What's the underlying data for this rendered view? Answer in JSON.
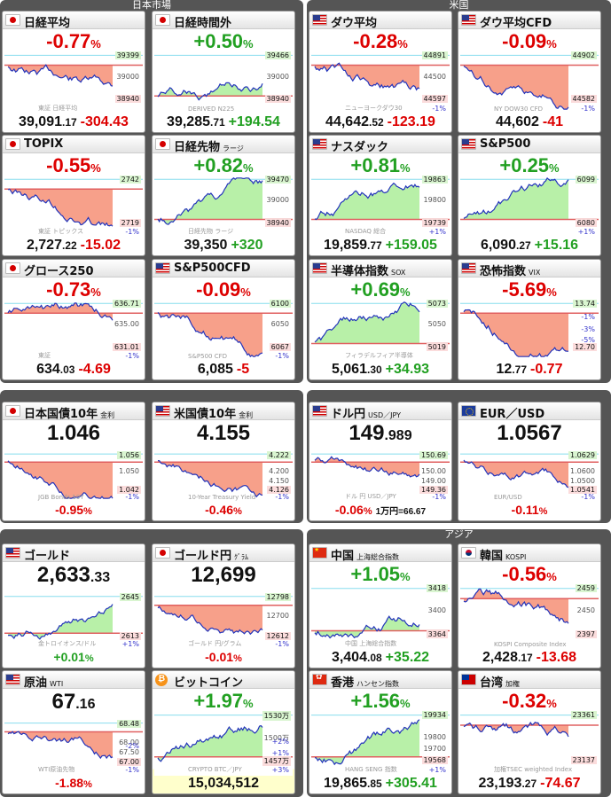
{
  "sections": [
    {
      "title": "日本市場"
    },
    {
      "title": "米国"
    },
    {
      "title": "アジア"
    }
  ],
  "panels": [
    {
      "name": "日経平均",
      "sub": "",
      "flag": "jp",
      "change": "-0.77",
      "dir": "dn",
      "val_int": "39,091",
      "val_dec": ".17",
      "val_ch": "-304.43",
      "hi": "39399",
      "lo": "38940",
      "mid": "39000",
      "wm": "東証 日経平均"
    },
    {
      "name": "日経時間外",
      "sub": "",
      "flag": "jp",
      "change": "+0.50",
      "dir": "up",
      "val_int": "39,285",
      "val_dec": ".71",
      "val_ch": "+194.54",
      "hi": "39466",
      "lo": "38940",
      "mid": "39000",
      "wm": "DERIVED N225"
    },
    {
      "name": "ダウ平均",
      "sub": "",
      "flag": "us",
      "change": "-0.28",
      "dir": "dn",
      "val_int": "44,642",
      "val_dec": ".52",
      "val_ch": "-123.19",
      "hi": "44891",
      "lo": "44597",
      "mid": "44500",
      "pl": "-1%",
      "wm": "ニューヨークダウ30"
    },
    {
      "name": "ダウ平均CFD",
      "sub": "",
      "flag": "us",
      "change": "-0.09",
      "dir": "dn",
      "val_int": "44,602",
      "val_dec": "",
      "val_ch": "-41",
      "hi": "44902",
      "lo": "44582",
      "pl": "-1%",
      "wm": "NY DOW30 CFD"
    },
    {
      "name": "TOPIX",
      "sub": "",
      "flag": "jp",
      "change": "-0.55",
      "dir": "dn",
      "val_int": "2,727",
      "val_dec": ".22",
      "val_ch": "-15.02",
      "hi": "2742",
      "lo": "2719",
      "pl": "-1%",
      "wm": "東証 トピックス"
    },
    {
      "name": "日経先物",
      "sub": "ラージ",
      "flag": "jp",
      "change": "+0.82",
      "dir": "up",
      "val_int": "39,350",
      "val_dec": "",
      "val_ch": "+320",
      "hi": "39470",
      "lo": "38940",
      "mid": "39000",
      "wm": "日経先物 ラージ"
    },
    {
      "name": "ナスダック",
      "sub": "",
      "flag": "us",
      "change": "+0.81",
      "dir": "up",
      "val_int": "19,859",
      "val_dec": ".77",
      "val_ch": "+159.05",
      "hi": "19863",
      "lo": "19739",
      "mid": "19800",
      "pl": "+1%",
      "wm": "NASDAQ 総合"
    },
    {
      "name": "S&P500",
      "sub": "",
      "flag": "us",
      "change": "+0.25",
      "dir": "up",
      "val_int": "6,090",
      "val_dec": ".27",
      "val_ch": "+15.16",
      "hi": "6099",
      "lo": "6080",
      "pl": "+1%",
      "wm": ""
    },
    {
      "name": "グロース250",
      "sub": "",
      "flag": "jp",
      "change": "-0.73",
      "dir": "dn",
      "val_int": "634",
      "val_dec": ".03",
      "val_ch": "-4.69",
      "hi": "636.71",
      "lo": "631.01",
      "mid": "635.00",
      "pl": "-1%",
      "wm": "東証"
    },
    {
      "name": "S&P500CFD",
      "sub": "",
      "flag": "us",
      "change": "-0.09",
      "dir": "dn",
      "val_int": "6,085",
      "val_dec": "",
      "val_ch": "-5",
      "hi": "6100",
      "lo": "6067",
      "mid": "6050",
      "pl": "-1%",
      "wm": "S&P500 CFD"
    },
    {
      "name": "半導体指数",
      "sub": "SOX",
      "flag": "us",
      "change": "+0.69",
      "dir": "up",
      "val_int": "5,061",
      "val_dec": ".30",
      "val_ch": "+34.93",
      "hi": "5073",
      "lo": "5019",
      "mid": "5050",
      "wm": "フィラデルフィア半導体"
    },
    {
      "name": "恐怖指数",
      "sub": "VIX",
      "flag": "us",
      "change": "-5.69",
      "dir": "dn",
      "val_int": "12",
      "val_dec": ".77",
      "val_ch": "-0.77",
      "hi": "13.74",
      "lo": "12.70",
      "pl1": "-1%",
      "pl2": "-3%",
      "pl3": "-5%",
      "wm": ""
    },
    {
      "name": "日本国債10年",
      "sub": "金利",
      "flag": "jp",
      "big_int": "1.046",
      "big_dec": "",
      "change": "-0.95",
      "dir": "dn",
      "hi": "1.056",
      "lo": "1.042",
      "mid": "1.050",
      "pl": "-1%",
      "wm": "JGB Bonds 10Y"
    },
    {
      "name": "米国債10年",
      "sub": "金利",
      "flag": "us",
      "big_int": "4.155",
      "big_dec": "",
      "change": "-0.46",
      "dir": "dn",
      "hi": "4.222",
      "lo": "4.126",
      "mid": "4.200",
      "mid2": "4.150",
      "pl": "-1%",
      "wm": "10-Year Treasury Yield"
    },
    {
      "name": "ドル円",
      "sub": "USD／JPY",
      "flag": "us",
      "big_int": "149",
      "big_dec": ".989",
      "change": "-0.06",
      "dir": "dn",
      "note": "1万円=66.67",
      "hi": "150.69",
      "lo": "149.36",
      "mid": "150.00",
      "mid2": "149.00",
      "pl": "-1%",
      "wm": "ドル 円 USD／JPY"
    },
    {
      "name": "EUR／USD",
      "sub": "",
      "flag": "eu",
      "big_int": "1.0567",
      "big_dec": "",
      "change": "-0.11",
      "dir": "dn",
      "hi": "1.0629",
      "lo": "1.0541",
      "mid": "1.0600",
      "mid2": "1.0500",
      "pl": "-1%",
      "wm": "EUR/USD"
    },
    {
      "name": "ゴールド",
      "sub": "",
      "flag": "us",
      "big_int": "2,633",
      "big_dec": ".33",
      "change": "+0.01",
      "dir": "up",
      "hi": "2645",
      "lo": "2613",
      "pl": "+1%",
      "wm": "金トロイオンス/ドル"
    },
    {
      "name": "ゴールド円",
      "sub": "ｸﾞﾗﾑ",
      "flag": "jp",
      "big_int": "12,699",
      "big_dec": "",
      "change": "-0.01",
      "dir": "dn",
      "hi": "12798",
      "lo": "12612",
      "mid": "12700",
      "pl": "-1%",
      "wm": "ゴールド 円/グラム"
    },
    {
      "name": "中国",
      "sub": "上海総合指数",
      "flag": "cn",
      "change": "+1.05",
      "dir": "up",
      "val_int": "3,404",
      "val_dec": ".08",
      "val_ch": "+35.22",
      "hi": "3418",
      "lo": "3364",
      "mid": "3400",
      "wm": "中国 上海総合指数"
    },
    {
      "name": "韓国",
      "sub": "KOSPI",
      "flag": "kr",
      "change": "-0.56",
      "dir": "dn",
      "val_int": "2,428",
      "val_dec": ".17",
      "val_ch": "-13.68",
      "hi": "2459",
      "lo": "2397",
      "mid": "2450",
      "wm": "KOSPI Composite Index"
    },
    {
      "name": "原油",
      "sub": "WTI",
      "flag": "us",
      "big_int": "67",
      "big_dec": ".16",
      "change": "-1.88",
      "dir": "dn",
      "hi": "68.48",
      "lo": "67.00",
      "mid": "68.00",
      "mid2": "67.50",
      "pl": "-1%",
      "pl2": "-2%",
      "wm": "WTI原油先物"
    },
    {
      "name": "ビットコイン",
      "sub": "",
      "flag": "btc",
      "change": "+1.97",
      "dir": "up",
      "bottom_plain": "15,034,512",
      "hi": "1530万",
      "lo": "1457万",
      "mid": "1500万",
      "pl": "+3%",
      "pl2": "+2%",
      "pl3": "+1%",
      "wm": "CRYPTO BTC／JPY"
    },
    {
      "name": "香港",
      "sub": "ハンセン指数",
      "flag": "hk",
      "change": "+1.56",
      "dir": "up",
      "val_int": "19,865",
      "val_dec": ".85",
      "val_ch": "+305.41",
      "hi": "19934",
      "lo": "19568",
      "mid": "19800",
      "mid2": "19700",
      "pl": "+1%",
      "wm": "HANG SENG 指数"
    },
    {
      "name": "台湾",
      "sub": "加権",
      "flag": "tw",
      "change": "-0.32",
      "dir": "dn",
      "val_int": "23,193",
      "val_dec": ".27",
      "val_ch": "-74.67",
      "hi": "23361",
      "lo": "23137",
      "wm": "加権TSEC weighted Index"
    }
  ],
  "colors": {
    "up": "#22a022",
    "down": "#dd0000",
    "up_fill": "#b8f0a8",
    "down_fill": "#f7a08a",
    "line": "#2233bb",
    "ref": "#e06060",
    "hi_line": "#88ddee"
  },
  "pct_sign": "%"
}
